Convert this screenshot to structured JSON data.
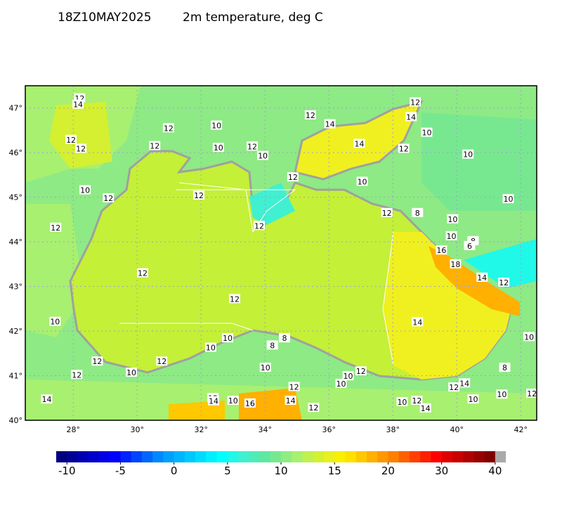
{
  "map": {
    "valid_time": "18Z10MAY2025",
    "title": "2m temperature, deg C",
    "lon_range": [
      26.5,
      42.5
    ],
    "lat_range": [
      40,
      47.5
    ],
    "lon_ticks": [
      {
        "value": 28,
        "label": "28°"
      },
      {
        "value": 30,
        "label": "30°"
      },
      {
        "value": 32,
        "label": "32°"
      },
      {
        "value": 34,
        "label": "34°"
      },
      {
        "value": 36,
        "label": "36°"
      },
      {
        "value": 38,
        "label": "38°"
      },
      {
        "value": 40,
        "label": "40°"
      },
      {
        "value": 42,
        "label": "42°"
      }
    ],
    "lat_ticks": [
      {
        "value": 40,
        "label": "40°"
      },
      {
        "value": 41,
        "label": "41°"
      },
      {
        "value": 42,
        "label": "42°"
      },
      {
        "value": 43,
        "label": "43°"
      },
      {
        "value": 44,
        "label": "44°"
      },
      {
        "value": 45,
        "label": "45°"
      },
      {
        "value": 46,
        "label": "46°"
      },
      {
        "value": 47,
        "label": "47°"
      }
    ],
    "grid": true,
    "contour_labels": [
      {
        "lon": 28.2,
        "lat": 47.22,
        "value": 12
      },
      {
        "lon": 28.15,
        "lat": 47.08,
        "value": 14
      },
      {
        "lon": 27.93,
        "lat": 46.29,
        "value": 12
      },
      {
        "lon": 28.24,
        "lat": 46.09,
        "value": 12
      },
      {
        "lon": 28.37,
        "lat": 45.16,
        "value": 10
      },
      {
        "lon": 29.1,
        "lat": 44.98,
        "value": 12
      },
      {
        "lon": 27.45,
        "lat": 44.32,
        "value": 12
      },
      {
        "lon": 30.98,
        "lat": 46.55,
        "value": 12
      },
      {
        "lon": 30.55,
        "lat": 46.15,
        "value": 12
      },
      {
        "lon": 32.48,
        "lat": 46.61,
        "value": 10
      },
      {
        "lon": 32.54,
        "lat": 46.11,
        "value": 10
      },
      {
        "lon": 33.6,
        "lat": 46.14,
        "value": 12
      },
      {
        "lon": 33.93,
        "lat": 45.93,
        "value": 10
      },
      {
        "lon": 35.42,
        "lat": 46.84,
        "value": 12
      },
      {
        "lon": 36.03,
        "lat": 46.64,
        "value": 14
      },
      {
        "lon": 36.95,
        "lat": 46.2,
        "value": 14
      },
      {
        "lon": 38.7,
        "lat": 47.13,
        "value": 12
      },
      {
        "lon": 38.57,
        "lat": 46.8,
        "value": 14
      },
      {
        "lon": 39.06,
        "lat": 46.45,
        "value": 10
      },
      {
        "lon": 38.34,
        "lat": 46.09,
        "value": 12
      },
      {
        "lon": 40.35,
        "lat": 45.96,
        "value": 10
      },
      {
        "lon": 34.87,
        "lat": 45.45,
        "value": 12
      },
      {
        "lon": 37.04,
        "lat": 45.35,
        "value": 10
      },
      {
        "lon": 31.93,
        "lat": 45.04,
        "value": 12
      },
      {
        "lon": 41.61,
        "lat": 44.96,
        "value": 10
      },
      {
        "lon": 37.81,
        "lat": 44.65,
        "value": 12
      },
      {
        "lon": 38.77,
        "lat": 44.65,
        "value": 8
      },
      {
        "lon": 39.87,
        "lat": 44.51,
        "value": 10
      },
      {
        "lon": 33.82,
        "lat": 44.36,
        "value": 12
      },
      {
        "lon": 39.83,
        "lat": 44.13,
        "value": 10
      },
      {
        "lon": 40.51,
        "lat": 44.02,
        "value": 8
      },
      {
        "lon": 40.4,
        "lat": 43.91,
        "value": 6
      },
      {
        "lon": 39.52,
        "lat": 43.81,
        "value": 16
      },
      {
        "lon": 39.96,
        "lat": 43.5,
        "value": 18
      },
      {
        "lon": 40.79,
        "lat": 43.2,
        "value": 14
      },
      {
        "lon": 41.47,
        "lat": 43.09,
        "value": 12
      },
      {
        "lon": 30.17,
        "lat": 43.3,
        "value": 12
      },
      {
        "lon": 33.05,
        "lat": 42.72,
        "value": 12
      },
      {
        "lon": 38.77,
        "lat": 42.2,
        "value": 14
      },
      {
        "lon": 27.43,
        "lat": 42.21,
        "value": 10
      },
      {
        "lon": 34.61,
        "lat": 41.84,
        "value": 8
      },
      {
        "lon": 32.83,
        "lat": 41.84,
        "value": 10
      },
      {
        "lon": 34.23,
        "lat": 41.68,
        "value": 8
      },
      {
        "lon": 32.3,
        "lat": 41.63,
        "value": 10
      },
      {
        "lon": 42.26,
        "lat": 41.87,
        "value": 10
      },
      {
        "lon": 28.75,
        "lat": 41.32,
        "value": 12
      },
      {
        "lon": 30.77,
        "lat": 41.32,
        "value": 12
      },
      {
        "lon": 29.82,
        "lat": 41.07,
        "value": 10
      },
      {
        "lon": 28.11,
        "lat": 41.02,
        "value": 12
      },
      {
        "lon": 34.01,
        "lat": 41.18,
        "value": 10
      },
      {
        "lon": 37.0,
        "lat": 41.1,
        "value": 12
      },
      {
        "lon": 36.6,
        "lat": 40.99,
        "value": 10
      },
      {
        "lon": 41.5,
        "lat": 41.18,
        "value": 8
      },
      {
        "lon": 34.91,
        "lat": 40.75,
        "value": 12
      },
      {
        "lon": 36.38,
        "lat": 40.82,
        "value": 10
      },
      {
        "lon": 40.24,
        "lat": 40.83,
        "value": 14
      },
      {
        "lon": 39.91,
        "lat": 40.74,
        "value": 12
      },
      {
        "lon": 27.17,
        "lat": 40.47,
        "value": 14
      },
      {
        "lon": 32.37,
        "lat": 40.5,
        "value": 12
      },
      {
        "lon": 32.39,
        "lat": 40.43,
        "value": 14
      },
      {
        "lon": 33.0,
        "lat": 40.44,
        "value": 10
      },
      {
        "lon": 33.53,
        "lat": 40.38,
        "value": 16
      },
      {
        "lon": 34.8,
        "lat": 40.44,
        "value": 14
      },
      {
        "lon": 35.52,
        "lat": 40.28,
        "value": 12
      },
      {
        "lon": 38.29,
        "lat": 40.41,
        "value": 10
      },
      {
        "lon": 38.75,
        "lat": 40.44,
        "value": 12
      },
      {
        "lon": 39.02,
        "lat": 40.27,
        "value": 14
      },
      {
        "lon": 40.51,
        "lat": 40.47,
        "value": 10
      },
      {
        "lon": 41.41,
        "lat": 40.58,
        "value": 10
      },
      {
        "lon": 42.35,
        "lat": 40.6,
        "value": 12
      }
    ],
    "colorbar": {
      "bounds": [
        -11,
        -10,
        -9,
        -8,
        -7,
        -6,
        -5,
        -4,
        -3,
        -2,
        -1,
        0,
        1,
        2,
        3,
        4,
        5,
        6,
        7,
        8,
        9,
        10,
        11,
        12,
        13,
        14,
        15,
        16,
        17,
        18,
        19,
        20,
        22,
        24,
        26,
        28,
        30,
        32,
        34,
        36,
        38,
        40
      ],
      "colors": [
        "#000080",
        "#000099",
        "#0000b3",
        "#0000cc",
        "#0000e6",
        "#0000ff",
        "#0022ff",
        "#0044ff",
        "#0066ff",
        "#0088ff",
        "#00a0ff",
        "#00b4ff",
        "#00c8ff",
        "#00dcff",
        "#00f0ff",
        "#00ffff",
        "#20f8e8",
        "#40f0d0",
        "#50ecb8",
        "#60e8a0",
        "#78e890",
        "#90ec80",
        "#a8f070",
        "#c0f050",
        "#d4f030",
        "#e8f020",
        "#f8f000",
        "#ffe000",
        "#ffc800",
        "#ffb000",
        "#ff9800",
        "#ff8000",
        "#ff6000",
        "#ff4000",
        "#ff2000",
        "#ff0000",
        "#e00000",
        "#c80000",
        "#b00000",
        "#980000",
        "#800000"
      ],
      "overflow_color": "#aaaaaa",
      "ticks": [
        -10,
        -5,
        0,
        5,
        10,
        15,
        20,
        30,
        40
      ]
    }
  }
}
